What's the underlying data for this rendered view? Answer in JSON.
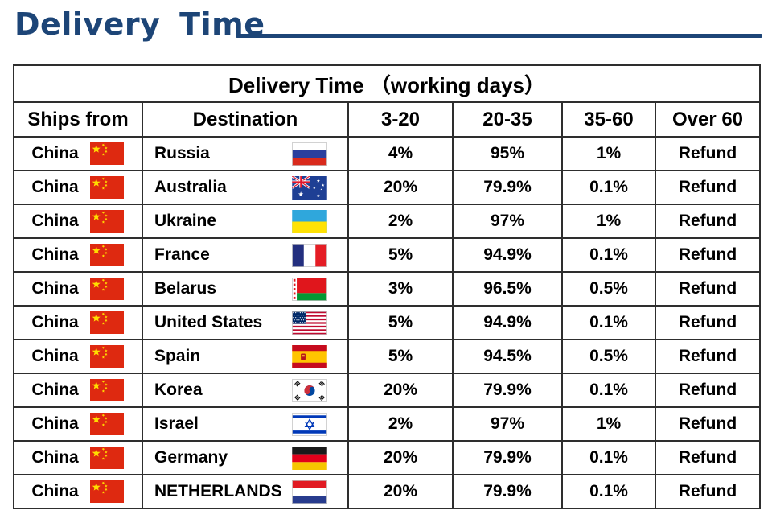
{
  "page": {
    "title": "Delivery Time"
  },
  "colors": {
    "accent": "#1d4577",
    "table_border": "#2e2e2e",
    "text": "#000000"
  },
  "table": {
    "caption": "Delivery Time （working days）",
    "columns": [
      "Ships from",
      "Destination",
      "3-20",
      "20-35",
      "35-60",
      "Over 60"
    ],
    "rows": [
      {
        "ships_from": "China",
        "ships_from_flag": "china",
        "destination": "Russia",
        "destination_flag": "russia",
        "p3_20": "4%",
        "p20_35": "95%",
        "p35_60": "1%",
        "over_60": "Refund"
      },
      {
        "ships_from": "China",
        "ships_from_flag": "china",
        "destination": "Australia",
        "destination_flag": "australia",
        "p3_20": "20%",
        "p20_35": "79.9%",
        "p35_60": "0.1%",
        "over_60": "Refund"
      },
      {
        "ships_from": "China",
        "ships_from_flag": "china",
        "destination": "Ukraine",
        "destination_flag": "ukraine",
        "p3_20": "2%",
        "p20_35": "97%",
        "p35_60": "1%",
        "over_60": "Refund"
      },
      {
        "ships_from": "China",
        "ships_from_flag": "china",
        "destination": "France",
        "destination_flag": "france",
        "p3_20": "5%",
        "p20_35": "94.9%",
        "p35_60": "0.1%",
        "over_60": "Refund"
      },
      {
        "ships_from": "China",
        "ships_from_flag": "china",
        "destination": "Belarus",
        "destination_flag": "belarus",
        "p3_20": "3%",
        "p20_35": "96.5%",
        "p35_60": "0.5%",
        "over_60": "Refund"
      },
      {
        "ships_from": "China",
        "ships_from_flag": "china",
        "destination": "United States",
        "destination_flag": "usa",
        "p3_20": "5%",
        "p20_35": "94.9%",
        "p35_60": "0.1%",
        "over_60": "Refund"
      },
      {
        "ships_from": "China",
        "ships_from_flag": "china",
        "destination": "Spain",
        "destination_flag": "spain",
        "p3_20": "5%",
        "p20_35": "94.5%",
        "p35_60": "0.5%",
        "over_60": "Refund"
      },
      {
        "ships_from": "China",
        "ships_from_flag": "china",
        "destination": "Korea",
        "destination_flag": "korea",
        "p3_20": "20%",
        "p20_35": "79.9%",
        "p35_60": "0.1%",
        "over_60": "Refund"
      },
      {
        "ships_from": "China",
        "ships_from_flag": "china",
        "destination": "Israel",
        "destination_flag": "israel",
        "p3_20": "2%",
        "p20_35": "97%",
        "p35_60": "1%",
        "over_60": "Refund"
      },
      {
        "ships_from": "China",
        "ships_from_flag": "china",
        "destination": "Germany",
        "destination_flag": "germany",
        "p3_20": "20%",
        "p20_35": "79.9%",
        "p35_60": "0.1%",
        "over_60": "Refund"
      },
      {
        "ships_from": "China",
        "ships_from_flag": "china",
        "destination": "NETHERLANDS",
        "destination_flag": "netherlands",
        "p3_20": "20%",
        "p20_35": "79.9%",
        "p35_60": "0.1%",
        "over_60": "Refund"
      }
    ]
  }
}
